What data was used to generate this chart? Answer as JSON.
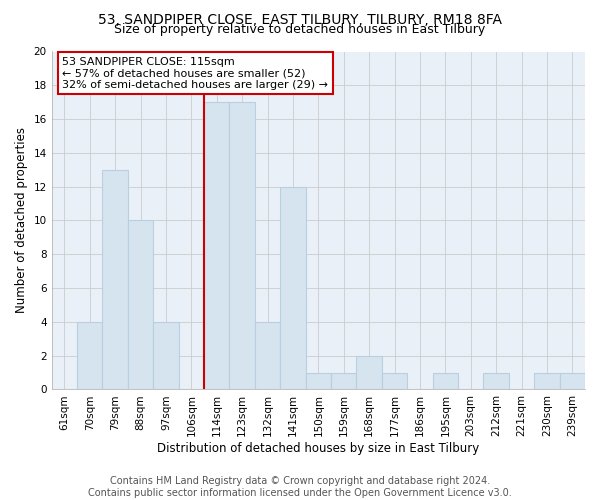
{
  "title1": "53, SANDPIPER CLOSE, EAST TILBURY, TILBURY, RM18 8FA",
  "title2": "Size of property relative to detached houses in East Tilbury",
  "xlabel": "Distribution of detached houses by size in East Tilbury",
  "ylabel": "Number of detached properties",
  "footer1": "Contains HM Land Registry data © Crown copyright and database right 2024.",
  "footer2": "Contains public sector information licensed under the Open Government Licence v3.0.",
  "annotation_line1": "53 SANDPIPER CLOSE: 115sqm",
  "annotation_line2": "← 57% of detached houses are smaller (52)",
  "annotation_line3": "32% of semi-detached houses are larger (29) →",
  "categories": [
    "61sqm",
    "70sqm",
    "79sqm",
    "88sqm",
    "97sqm",
    "106sqm",
    "114sqm",
    "123sqm",
    "132sqm",
    "141sqm",
    "150sqm",
    "159sqm",
    "168sqm",
    "177sqm",
    "186sqm",
    "195sqm",
    "203sqm",
    "212sqm",
    "221sqm",
    "230sqm",
    "239sqm"
  ],
  "values": [
    0,
    4,
    13,
    10,
    4,
    0,
    17,
    17,
    4,
    12,
    1,
    1,
    2,
    1,
    0,
    1,
    0,
    1,
    0,
    1,
    1
  ],
  "bar_color": "#d6e4f0",
  "bar_edge_color": "#b8cfe0",
  "marker_line_color": "#cc0000",
  "marker_bin_index": 6.0,
  "ylim": [
    0,
    20
  ],
  "yticks": [
    0,
    2,
    4,
    6,
    8,
    10,
    12,
    14,
    16,
    18,
    20
  ],
  "grid_color": "#cccccc",
  "bg_color": "#eaf0f8",
  "annotation_box_color": "#ffffff",
  "annotation_box_edge": "#cc0000",
  "title_fontsize": 10,
  "subtitle_fontsize": 9,
  "axis_label_fontsize": 8.5,
  "tick_fontsize": 7.5,
  "footer_fontsize": 7,
  "ann_fontsize": 8
}
